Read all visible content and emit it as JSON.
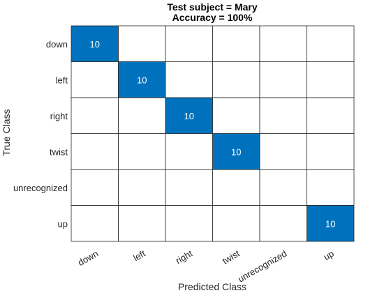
{
  "chart_data": {
    "type": "heatmap",
    "title_lines": [
      "Test subject = Mary",
      "Accuracy = 100%"
    ],
    "xlabel": "Predicted Class",
    "ylabel": "True Class",
    "rows": [
      "down",
      "left",
      "right",
      "twist",
      "unrecognized",
      "up"
    ],
    "cols": [
      "down",
      "left",
      "right",
      "twist",
      "unrecognized",
      "up"
    ],
    "matrix": [
      [
        10,
        0,
        0,
        0,
        0,
        0
      ],
      [
        0,
        10,
        0,
        0,
        0,
        0
      ],
      [
        0,
        0,
        10,
        0,
        0,
        0
      ],
      [
        0,
        0,
        0,
        10,
        0,
        0
      ],
      [
        0,
        0,
        0,
        0,
        0,
        0
      ],
      [
        0,
        0,
        0,
        0,
        0,
        10
      ]
    ],
    "colors": {
      "filled": "#0072BD",
      "empty": "#ffffff",
      "grid": "#262626"
    }
  }
}
